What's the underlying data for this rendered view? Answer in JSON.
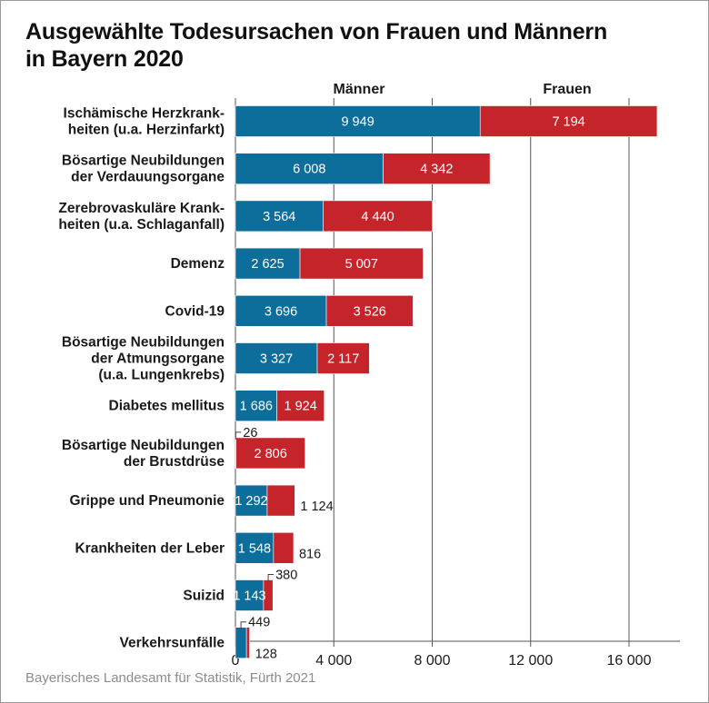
{
  "title_lines": [
    "Ausgewählte Todesursachen von Frauen und Männern",
    "in Bayern 2020"
  ],
  "source": "Bayerisches Landesamt für Statistik, Fürth 2021",
  "colors": {
    "maenner": "#0e6e9b",
    "frauen": "#c4242a",
    "grid": "#555555"
  },
  "chart_data": {
    "type": "bar",
    "orientation": "horizontal",
    "stacked": true,
    "title": "Ausgewählte Todesursachen von Frauen und Männern in Bayern 2020",
    "xlabel": "",
    "ylabel": "",
    "xlim": [
      0,
      17500
    ],
    "xticks": [
      0,
      4000,
      8000,
      12000,
      16000
    ],
    "xtick_labels": [
      "0",
      "4 000",
      "8 000",
      "12 000",
      "16 000"
    ],
    "legend_position": "top",
    "grid": "vertical, dark",
    "categories": [
      [
        "Ischämische Herzkrank-",
        "heiten (u.a. Herzinfarkt)"
      ],
      [
        "Bösartige Neubildungen",
        "der Verdauungsorgane"
      ],
      [
        "Zerebrovaskuläre Krank-",
        "heiten (u.a. Schlaganfall)"
      ],
      [
        "Demenz"
      ],
      [
        "Covid-19"
      ],
      [
        "Bösartige Neubildungen",
        "der Atmungsorgane",
        "(u.a. Lungenkrebs)"
      ],
      [
        "Diabetes mellitus"
      ],
      [
        "Bösartige Neubildungen",
        "der Brustdrüse"
      ],
      [
        "Grippe und Pneumonie"
      ],
      [
        "Krankheiten der Leber"
      ],
      [
        "Suizid"
      ],
      [
        "Verkehrsunfälle"
      ]
    ],
    "series": [
      {
        "name": "Männer",
        "values": [
          9949,
          6008,
          3564,
          2625,
          3696,
          3327,
          1686,
          26,
          1292,
          1548,
          1143,
          449
        ],
        "labels": [
          "9 949",
          "6 008",
          "3 564",
          "2 625",
          "3 696",
          "3 327",
          "1 686",
          "26",
          "1 292",
          "1 548",
          "1 143",
          "449"
        ]
      },
      {
        "name": "Frauen",
        "values": [
          7194,
          4342,
          4440,
          5007,
          3526,
          2117,
          1924,
          2806,
          1124,
          816,
          380,
          128
        ],
        "labels": [
          "7 194",
          "4 342",
          "4 440",
          "5 007",
          "3 526",
          "2 117",
          "1 924",
          "2 806",
          "1 124",
          "816",
          "380",
          "128"
        ]
      }
    ]
  }
}
